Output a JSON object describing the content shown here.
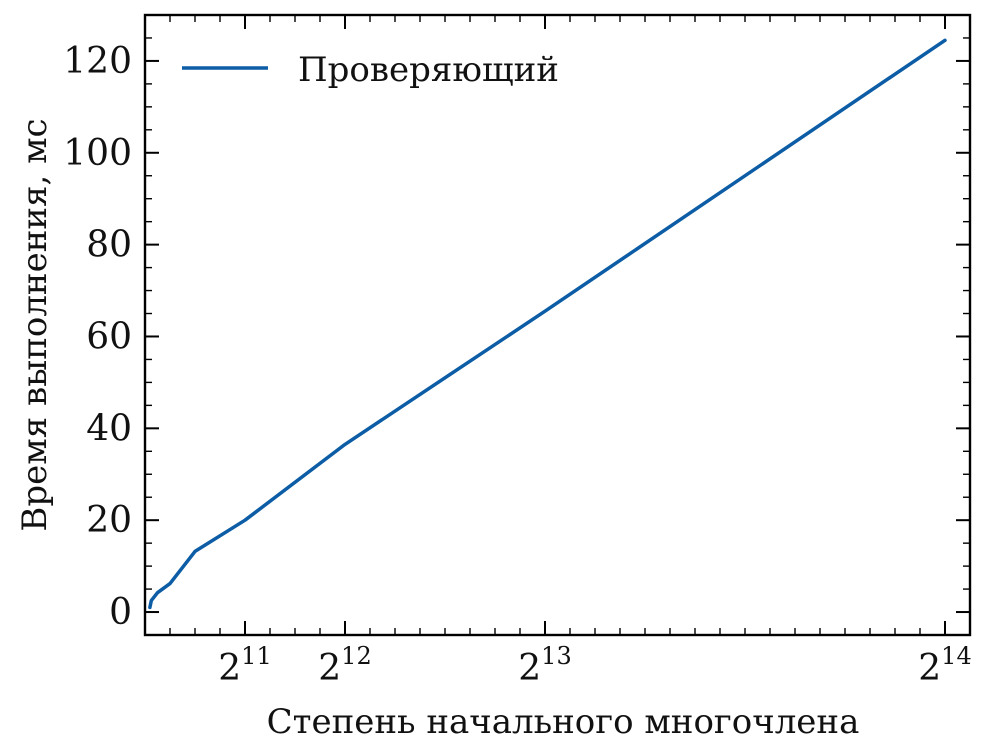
{
  "chart_data": {
    "type": "line",
    "title": "",
    "xlabel": "Степень начального многочлена",
    "ylabel": "Время выполнения, мс",
    "x_scale": "linear",
    "x_ticks": [
      {
        "value": 2048,
        "base": "2",
        "exp": "11"
      },
      {
        "value": 4096,
        "base": "2",
        "exp": "12"
      },
      {
        "value": 8192,
        "base": "2",
        "exp": "13"
      },
      {
        "value": 16384,
        "base": "2",
        "exp": "14"
      }
    ],
    "y_ticks": [
      0,
      20,
      40,
      60,
      80,
      100,
      120
    ],
    "xlim": [
      0,
      16896
    ],
    "ylim": [
      -5,
      130
    ],
    "grid": false,
    "legend_position": "top-left",
    "series": [
      {
        "name": "Проверяющий",
        "color": "#0C5DA5",
        "x": [
          100,
          128,
          256,
          512,
          1024,
          2048,
          4096,
          8192,
          16384
        ],
        "y": [
          1,
          2.5,
          4.2,
          6.2,
          13.2,
          20,
          36.5,
          65.5,
          124.5
        ]
      }
    ]
  }
}
